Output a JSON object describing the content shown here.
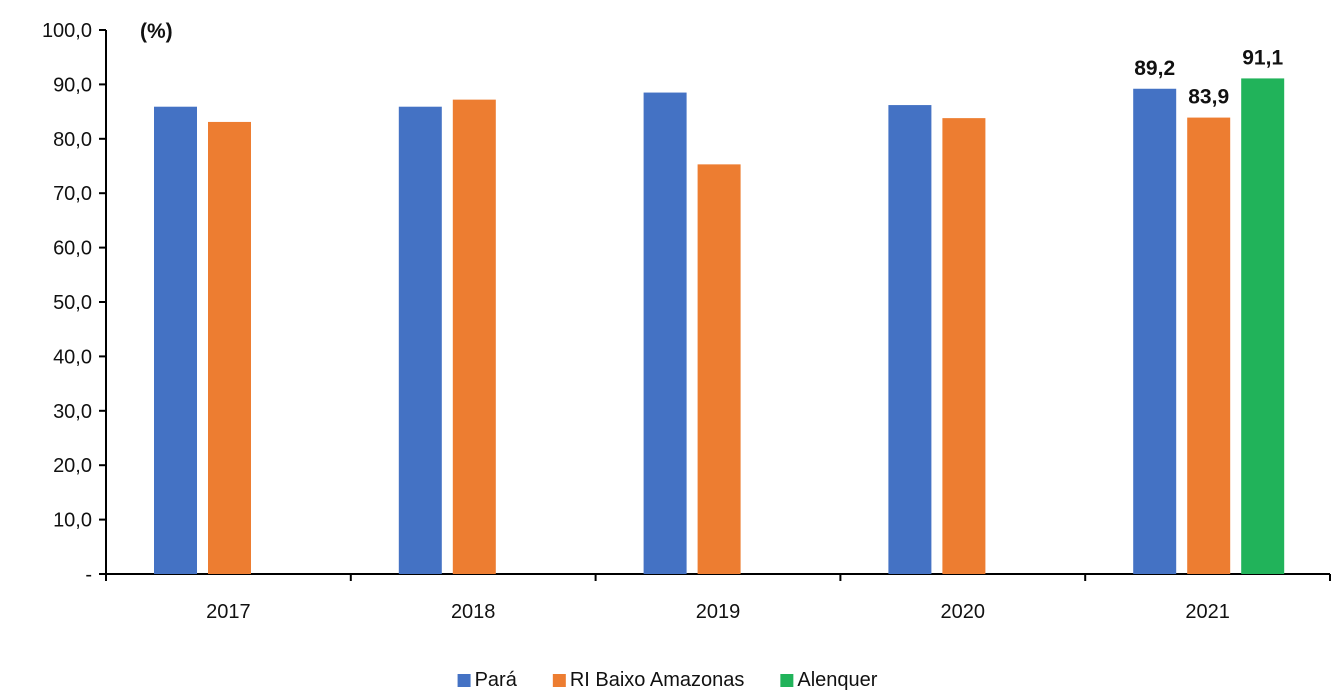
{
  "chart_data": {
    "type": "bar",
    "unit_label": "(%)",
    "categories": [
      "2017",
      "2018",
      "2019",
      "2020",
      "2021"
    ],
    "series": [
      {
        "name": "Pará",
        "color": "#4472C4",
        "values": [
          85.9,
          85.9,
          88.5,
          86.2,
          89.2
        ]
      },
      {
        "name": "RI Baixo Amazonas",
        "color": "#ED7D31",
        "values": [
          83.1,
          87.2,
          75.3,
          83.8,
          83.9
        ]
      },
      {
        "name": "Alenquer",
        "color": "#21B35A",
        "values": [
          null,
          null,
          null,
          null,
          91.1
        ]
      }
    ],
    "y_ticks": [
      "-",
      "10,0",
      "20,0",
      "30,0",
      "40,0",
      "50,0",
      "60,0",
      "70,0",
      "80,0",
      "90,0",
      "100,0"
    ],
    "data_labels": [
      {
        "series": 0,
        "category": 4,
        "text": "89,2"
      },
      {
        "series": 1,
        "category": 4,
        "text": "83,9"
      },
      {
        "series": 2,
        "category": 4,
        "text": "91,1"
      }
    ],
    "ylim": [
      0,
      100
    ],
    "legend_position": "bottom-center",
    "grid": false
  }
}
